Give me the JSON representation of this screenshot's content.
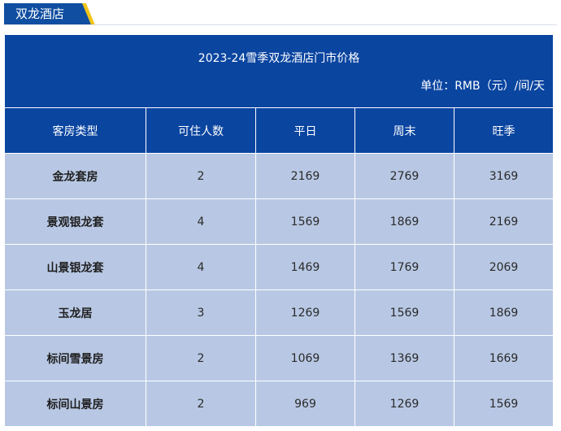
{
  "header": {
    "tab_label": "双龙酒店",
    "accent_color": "#f0c419",
    "brand_color": "#0a45a0"
  },
  "table": {
    "title": "2023-24雪季双龙酒店门市价格",
    "unit": "单位：RMB（元）/间/天",
    "columns": [
      "客房类型",
      "可住人数",
      "平日",
      "周末",
      "旺季"
    ],
    "rows": [
      [
        "金龙套房",
        "2",
        "2169",
        "2769",
        "3169"
      ],
      [
        "景观银龙套",
        "4",
        "1569",
        "1869",
        "2169"
      ],
      [
        "山景银龙套",
        "4",
        "1469",
        "1769",
        "2069"
      ],
      [
        "玉龙居",
        "3",
        "1269",
        "1569",
        "1869"
      ],
      [
        "标间雪景房",
        "2",
        "1069",
        "1369",
        "1669"
      ],
      [
        "标间山景房",
        "2",
        "969",
        "1269",
        "1569"
      ]
    ]
  }
}
